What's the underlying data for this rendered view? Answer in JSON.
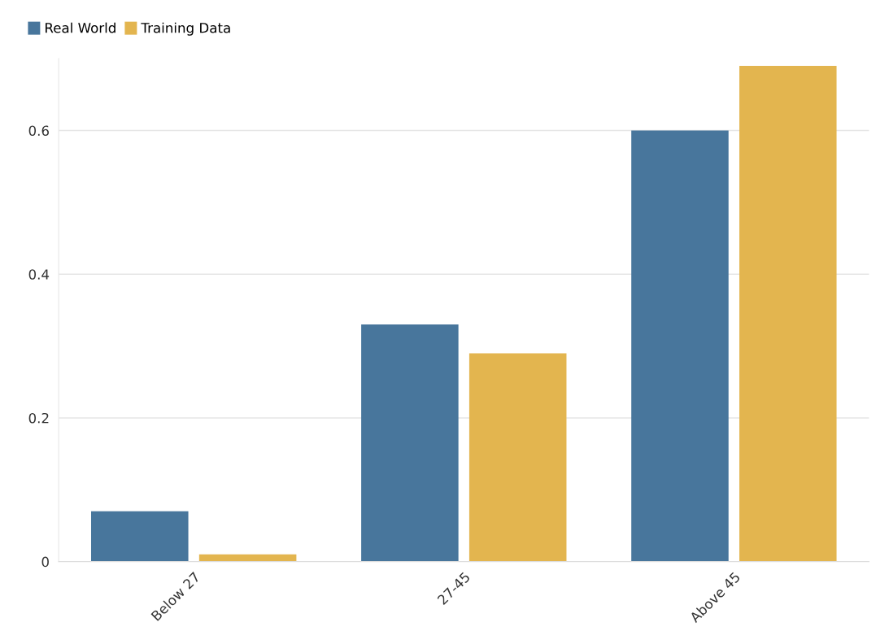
{
  "chart_data": {
    "type": "bar",
    "categories": [
      "Below 27",
      "27-45",
      "Above 45"
    ],
    "series": [
      {
        "name": "Real World",
        "color": "#48769c",
        "values": [
          0.07,
          0.33,
          0.6
        ]
      },
      {
        "name": "Training Data",
        "color": "#e3b54f",
        "values": [
          0.01,
          0.29,
          0.69
        ]
      }
    ],
    "ylim": [
      0,
      0.7
    ],
    "yticks": [
      0,
      0.2,
      0.4,
      0.6
    ],
    "grid": "y",
    "legend": "top left"
  }
}
